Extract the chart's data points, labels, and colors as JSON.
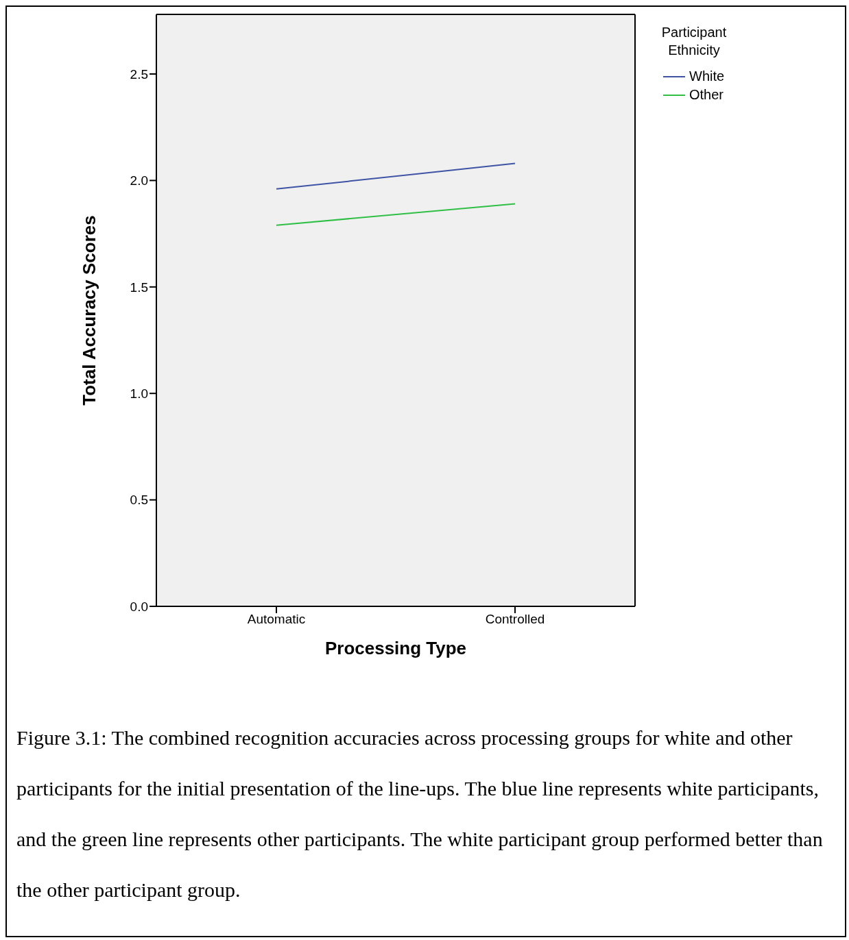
{
  "chart_data": {
    "type": "line",
    "xlabel": "Processing Type",
    "ylabel": "Total Accuracy Scores",
    "legend_title": "Participant Ethnicity",
    "categories": [
      "Automatic",
      "Controlled"
    ],
    "series": [
      {
        "name": "White",
        "color": "#3e53a4",
        "values": [
          1.96,
          2.08
        ]
      },
      {
        "name": "Other",
        "color": "#2fbf45",
        "values": [
          1.79,
          1.89
        ]
      }
    ],
    "ylim": [
      0,
      2.78
    ],
    "yticks": [
      {
        "value": 0,
        "label": "0.0"
      },
      {
        "value": 0.5,
        "label": "0.5"
      },
      {
        "value": 1,
        "label": "1.0"
      },
      {
        "value": 1.5,
        "label": "1.5"
      },
      {
        "value": 2,
        "label": "2.0"
      },
      {
        "value": 2.5,
        "label": "2.5"
      }
    ],
    "legend": "top right",
    "marker": "none",
    "line_style": "solid",
    "annotations": [
      "Figure 3.1: The combined recognition accuracies across processing groups for white and other participants for the initial presentation of the line-ups. The blue line represents white participants, and the green line represents other participants. The white participant group performed better than the other participant group."
    ]
  }
}
